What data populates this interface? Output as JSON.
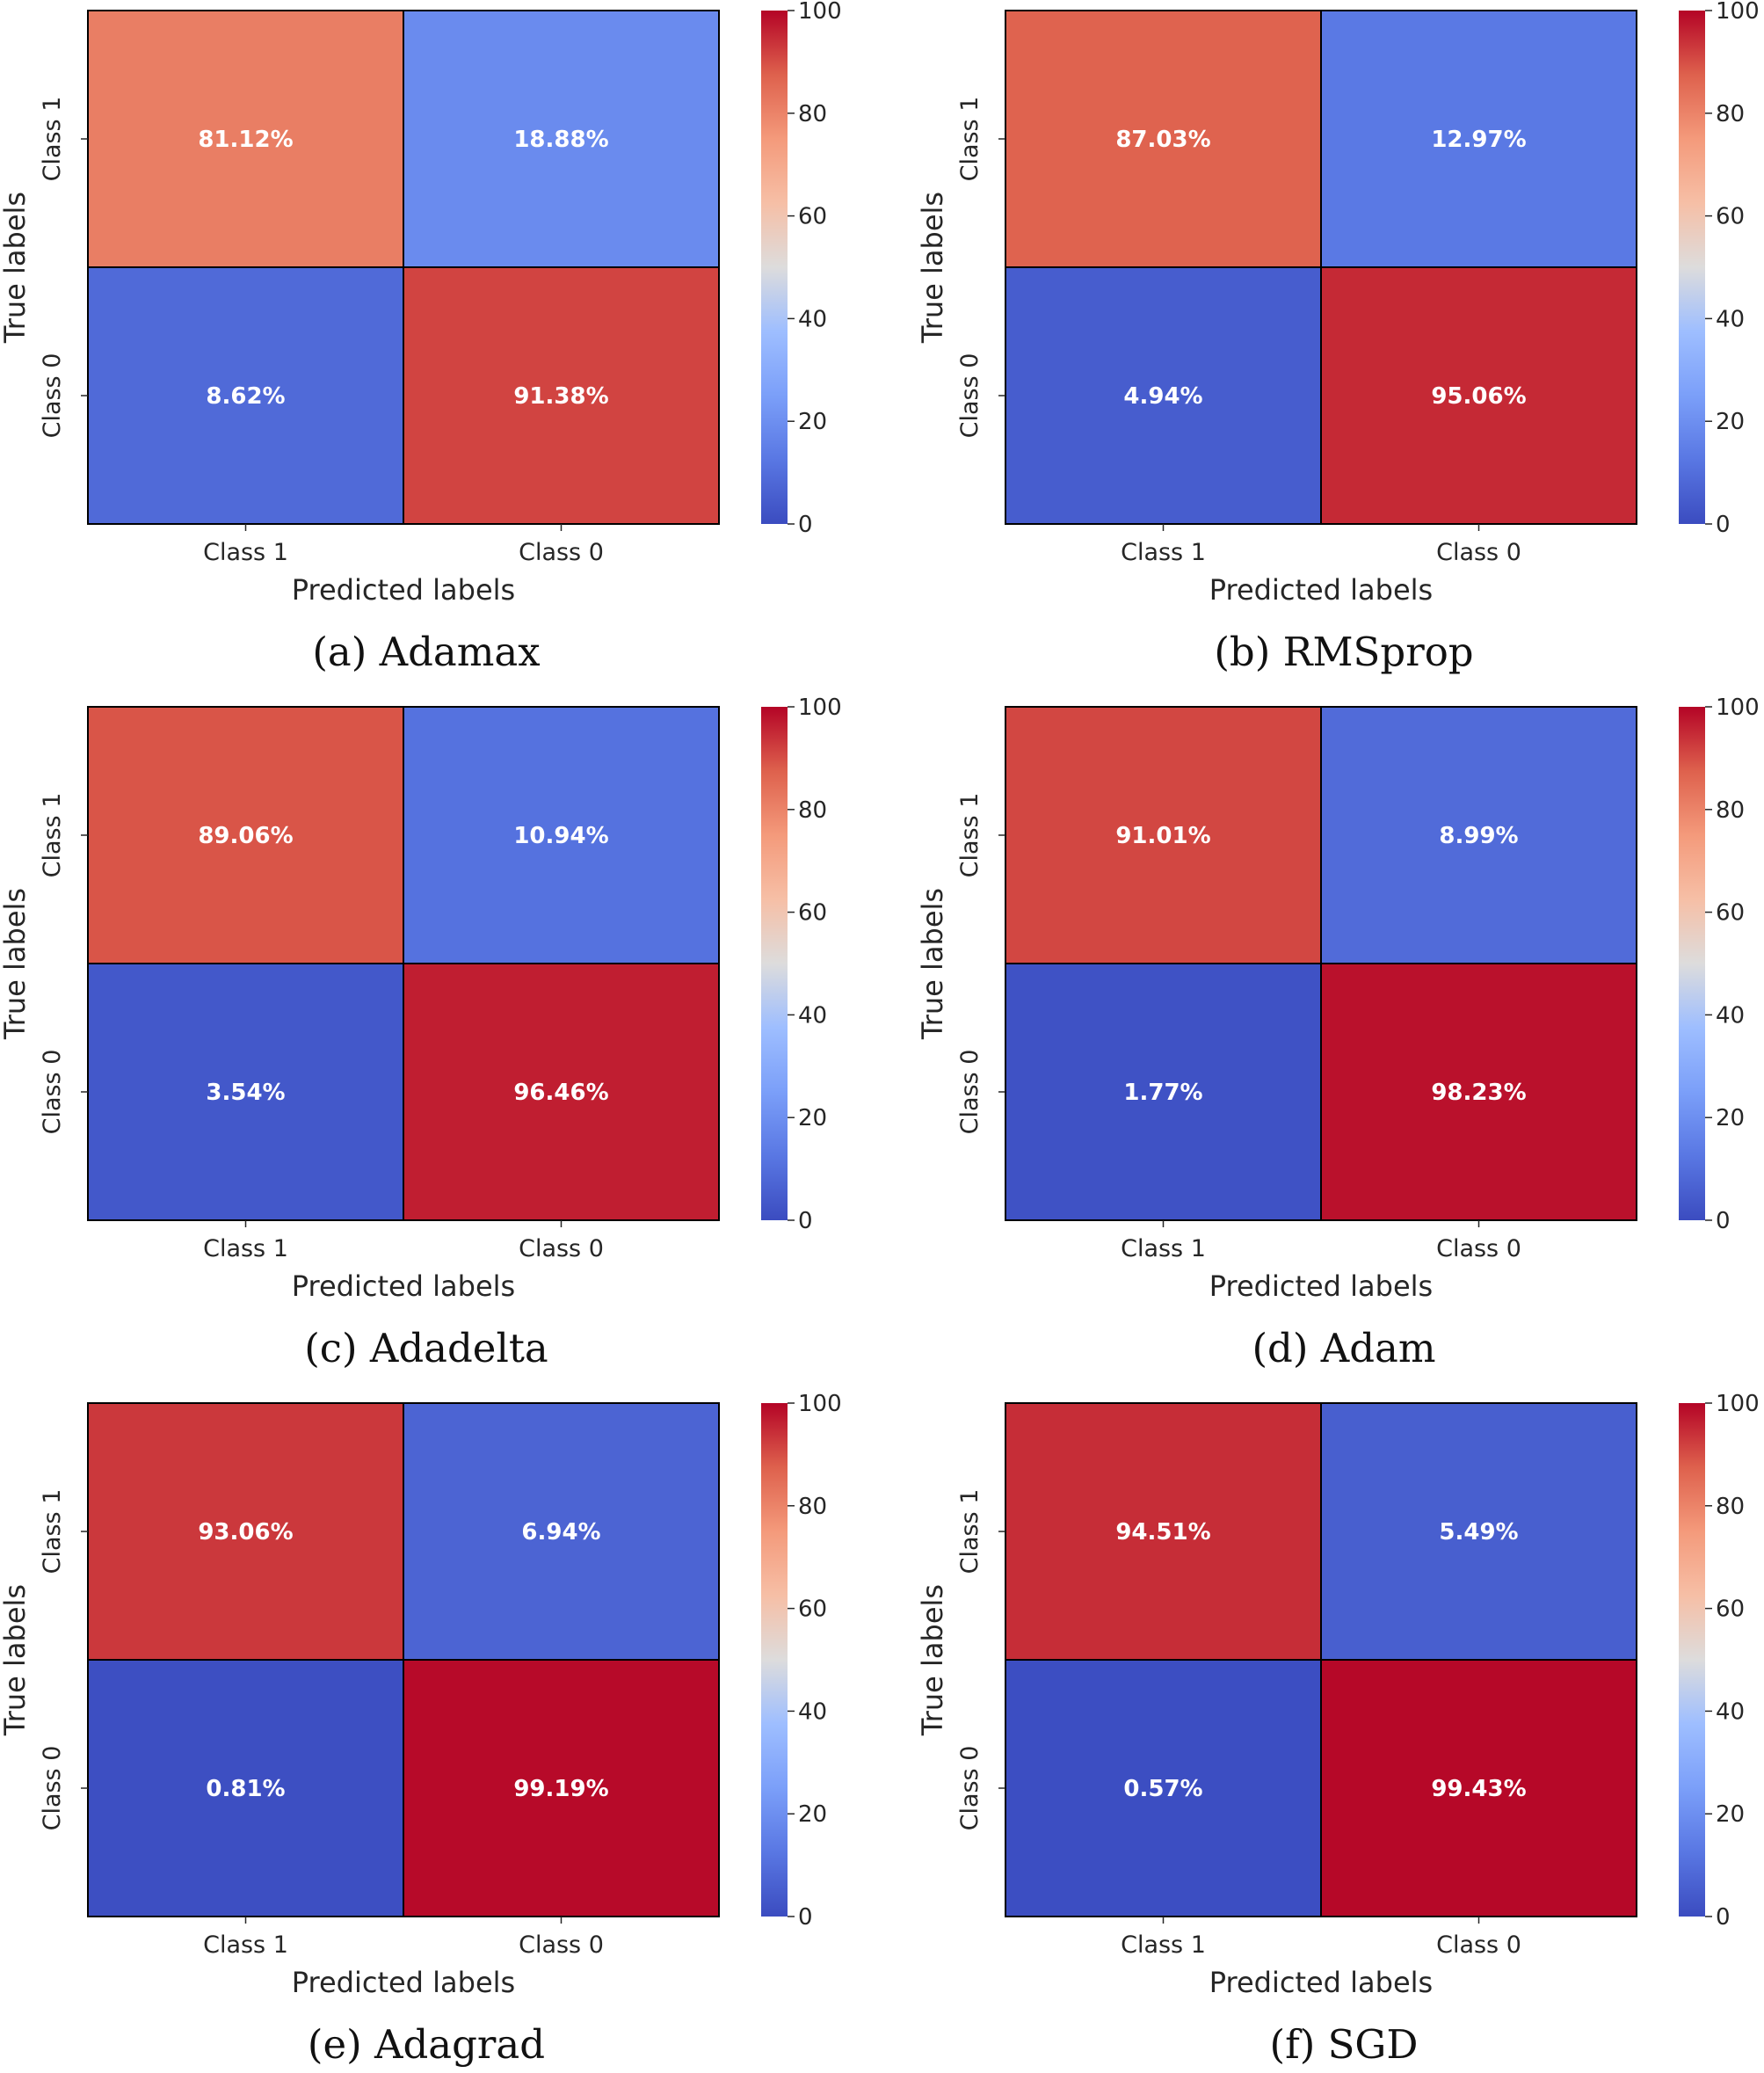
{
  "chart_data": [
    {
      "type": "heatmap",
      "caption": "(a) Adamax",
      "xlabel": "Predicted labels",
      "ylabel": "True labels",
      "x_tick_labels": [
        "Class 1",
        "Class 0"
      ],
      "y_tick_labels": [
        "Class 1",
        "Class 0"
      ],
      "values": [
        [
          81.12,
          18.88
        ],
        [
          8.62,
          91.38
        ]
      ],
      "cell_labels": [
        [
          "81.12%",
          "18.88%"
        ],
        [
          "8.62%",
          "91.38%"
        ]
      ],
      "colorbar": {
        "min": 0,
        "max": 100,
        "ticks": [
          "0",
          "20",
          "40",
          "60",
          "80",
          "100"
        ],
        "colormap": "coolwarm"
      }
    },
    {
      "type": "heatmap",
      "caption": "(b) RMSprop",
      "xlabel": "Predicted labels",
      "ylabel": "True labels",
      "x_tick_labels": [
        "Class 1",
        "Class 0"
      ],
      "y_tick_labels": [
        "Class 1",
        "Class 0"
      ],
      "values": [
        [
          87.03,
          12.97
        ],
        [
          4.94,
          95.06
        ]
      ],
      "cell_labels": [
        [
          "87.03%",
          "12.97%"
        ],
        [
          "4.94%",
          "95.06%"
        ]
      ],
      "colorbar": {
        "min": 0,
        "max": 100,
        "ticks": [
          "0",
          "20",
          "40",
          "60",
          "80",
          "100"
        ],
        "colormap": "coolwarm"
      }
    },
    {
      "type": "heatmap",
      "caption": "(c) Adadelta",
      "xlabel": "Predicted labels",
      "ylabel": "True labels",
      "x_tick_labels": [
        "Class 1",
        "Class 0"
      ],
      "y_tick_labels": [
        "Class 1",
        "Class 0"
      ],
      "values": [
        [
          89.06,
          10.94
        ],
        [
          3.54,
          96.46
        ]
      ],
      "cell_labels": [
        [
          "89.06%",
          "10.94%"
        ],
        [
          "3.54%",
          "96.46%"
        ]
      ],
      "colorbar": {
        "min": 0,
        "max": 100,
        "ticks": [
          "0",
          "20",
          "40",
          "60",
          "80",
          "100"
        ],
        "colormap": "coolwarm"
      }
    },
    {
      "type": "heatmap",
      "caption": "(d) Adam",
      "xlabel": "Predicted labels",
      "ylabel": "True labels",
      "x_tick_labels": [
        "Class 1",
        "Class 0"
      ],
      "y_tick_labels": [
        "Class 1",
        "Class 0"
      ],
      "values": [
        [
          91.01,
          8.99
        ],
        [
          1.77,
          98.23
        ]
      ],
      "cell_labels": [
        [
          "91.01%",
          "8.99%"
        ],
        [
          "1.77%",
          "98.23%"
        ]
      ],
      "colorbar": {
        "min": 0,
        "max": 100,
        "ticks": [
          "0",
          "20",
          "40",
          "60",
          "80",
          "100"
        ],
        "colormap": "coolwarm"
      }
    },
    {
      "type": "heatmap",
      "caption": "(e) Adagrad",
      "xlabel": "Predicted labels",
      "ylabel": "True labels",
      "x_tick_labels": [
        "Class 1",
        "Class 0"
      ],
      "y_tick_labels": [
        "Class 1",
        "Class 0"
      ],
      "values": [
        [
          93.06,
          6.94
        ],
        [
          0.81,
          99.19
        ]
      ],
      "cell_labels": [
        [
          "93.06%",
          "6.94%"
        ],
        [
          "0.81%",
          "99.19%"
        ]
      ],
      "colorbar": {
        "min": 0,
        "max": 100,
        "ticks": [
          "0",
          "20",
          "40",
          "60",
          "80",
          "100"
        ],
        "colormap": "coolwarm"
      }
    },
    {
      "type": "heatmap",
      "caption": "(f) SGD",
      "xlabel": "Predicted labels",
      "ylabel": "True labels",
      "x_tick_labels": [
        "Class 1",
        "Class 0"
      ],
      "y_tick_labels": [
        "Class 1",
        "Class 0"
      ],
      "values": [
        [
          94.51,
          5.49
        ],
        [
          0.57,
          99.43
        ]
      ],
      "cell_labels": [
        [
          "94.51%",
          "5.49%"
        ],
        [
          "0.57%",
          "99.43%"
        ]
      ],
      "colorbar": {
        "min": 0,
        "max": 100,
        "ticks": [
          "0",
          "20",
          "40",
          "60",
          "80",
          "100"
        ],
        "colormap": "coolwarm"
      }
    }
  ]
}
